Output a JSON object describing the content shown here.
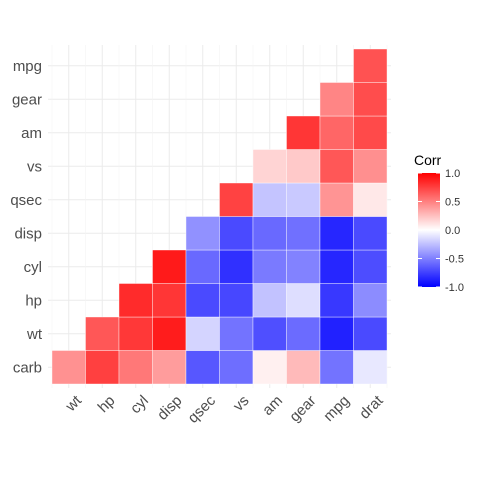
{
  "chart_data": {
    "type": "heatmap",
    "x_categories": [
      "wt",
      "hp",
      "cyl",
      "disp",
      "qsec",
      "vs",
      "am",
      "gear",
      "mpg",
      "drat"
    ],
    "y_categories": [
      "carb",
      "wt",
      "hp",
      "cyl",
      "disp",
      "qsec",
      "vs",
      "am",
      "gear",
      "mpg"
    ],
    "cells": [
      {
        "x": "wt",
        "y": "carb",
        "value": 0.43
      },
      {
        "x": "hp",
        "y": "carb",
        "value": 0.75
      },
      {
        "x": "cyl",
        "y": "carb",
        "value": 0.53
      },
      {
        "x": "disp",
        "y": "carb",
        "value": 0.39
      },
      {
        "x": "qsec",
        "y": "carb",
        "value": -0.66
      },
      {
        "x": "vs",
        "y": "carb",
        "value": -0.57
      },
      {
        "x": "am",
        "y": "carb",
        "value": 0.06
      },
      {
        "x": "gear",
        "y": "carb",
        "value": 0.27
      },
      {
        "x": "mpg",
        "y": "carb",
        "value": -0.55
      },
      {
        "x": "drat",
        "y": "carb",
        "value": -0.09
      },
      {
        "x": "hp",
        "y": "wt",
        "value": 0.66
      },
      {
        "x": "cyl",
        "y": "wt",
        "value": 0.78
      },
      {
        "x": "disp",
        "y": "wt",
        "value": 0.89
      },
      {
        "x": "qsec",
        "y": "wt",
        "value": -0.17
      },
      {
        "x": "vs",
        "y": "wt",
        "value": -0.55
      },
      {
        "x": "am",
        "y": "wt",
        "value": -0.69
      },
      {
        "x": "gear",
        "y": "wt",
        "value": -0.58
      },
      {
        "x": "mpg",
        "y": "wt",
        "value": -0.87
      },
      {
        "x": "drat",
        "y": "wt",
        "value": -0.71
      },
      {
        "x": "cyl",
        "y": "hp",
        "value": 0.83
      },
      {
        "x": "disp",
        "y": "hp",
        "value": 0.79
      },
      {
        "x": "qsec",
        "y": "hp",
        "value": -0.71
      },
      {
        "x": "vs",
        "y": "hp",
        "value": -0.72
      },
      {
        "x": "am",
        "y": "hp",
        "value": -0.24
      },
      {
        "x": "gear",
        "y": "hp",
        "value": -0.13
      },
      {
        "x": "mpg",
        "y": "hp",
        "value": -0.78
      },
      {
        "x": "drat",
        "y": "hp",
        "value": -0.45
      },
      {
        "x": "disp",
        "y": "cyl",
        "value": 0.9
      },
      {
        "x": "qsec",
        "y": "cyl",
        "value": -0.59
      },
      {
        "x": "vs",
        "y": "cyl",
        "value": -0.81
      },
      {
        "x": "am",
        "y": "cyl",
        "value": -0.52
      },
      {
        "x": "gear",
        "y": "cyl",
        "value": -0.49
      },
      {
        "x": "mpg",
        "y": "cyl",
        "value": -0.85
      },
      {
        "x": "drat",
        "y": "cyl",
        "value": -0.7
      },
      {
        "x": "qsec",
        "y": "disp",
        "value": -0.43
      },
      {
        "x": "vs",
        "y": "disp",
        "value": -0.71
      },
      {
        "x": "am",
        "y": "disp",
        "value": -0.59
      },
      {
        "x": "gear",
        "y": "disp",
        "value": -0.56
      },
      {
        "x": "mpg",
        "y": "disp",
        "value": -0.85
      },
      {
        "x": "drat",
        "y": "disp",
        "value": -0.71
      },
      {
        "x": "vs",
        "y": "qsec",
        "value": 0.74
      },
      {
        "x": "am",
        "y": "qsec",
        "value": -0.23
      },
      {
        "x": "gear",
        "y": "qsec",
        "value": -0.21
      },
      {
        "x": "mpg",
        "y": "qsec",
        "value": 0.42
      },
      {
        "x": "drat",
        "y": "qsec",
        "value": 0.09
      },
      {
        "x": "am",
        "y": "vs",
        "value": 0.17
      },
      {
        "x": "gear",
        "y": "vs",
        "value": 0.21
      },
      {
        "x": "mpg",
        "y": "vs",
        "value": 0.66
      },
      {
        "x": "drat",
        "y": "vs",
        "value": 0.44
      },
      {
        "x": "gear",
        "y": "am",
        "value": 0.79
      },
      {
        "x": "mpg",
        "y": "am",
        "value": 0.6
      },
      {
        "x": "drat",
        "y": "am",
        "value": 0.71
      },
      {
        "x": "mpg",
        "y": "gear",
        "value": 0.48
      },
      {
        "x": "drat",
        "y": "gear",
        "value": 0.7
      },
      {
        "x": "drat",
        "y": "mpg",
        "value": 0.68
      }
    ],
    "value_range": [
      -1,
      1
    ],
    "color_scale": {
      "low": "#0000ff",
      "mid": "#ffffff",
      "high": "#ff0000"
    },
    "legend": {
      "title": "Corr",
      "position": "right",
      "ticks": [
        1.0,
        0.5,
        0.0,
        -0.5,
        -1.0
      ],
      "tick_labels": [
        "1.0",
        "0.5",
        "0.0",
        "-0.5",
        "-1.0"
      ]
    },
    "grid": true
  }
}
